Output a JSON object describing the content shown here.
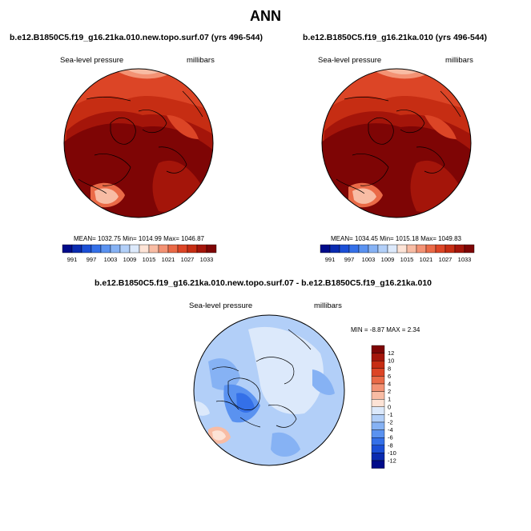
{
  "page": {
    "title": "ANN"
  },
  "top_panels": [
    {
      "case_title": "b.e12.B1850C5.f19_g16.21ka.010.new.topo.surf.07 (yrs 496-544)",
      "variable": "Sea-level pressure",
      "units": "millibars",
      "stats": "MEAN= 1032.75   Min= 1014.99   Max= 1046.87"
    },
    {
      "case_title": "b.e12.B1850C5.f19_g16.21ka.010 (yrs 496-544)",
      "variable": "Sea-level pressure",
      "units": "millibars",
      "stats": "MEAN= 1034.45   Min= 1015.18   Max= 1049.83"
    }
  ],
  "abs_colorbar": {
    "labels": [
      "991",
      "997",
      "1003",
      "1009",
      "1015",
      "1021",
      "1027",
      "1033"
    ],
    "colors": [
      "#000b8a",
      "#0a2bb0",
      "#1b4fd6",
      "#3470e8",
      "#5a92f0",
      "#86b2f4",
      "#b2cff8",
      "#dce9fb",
      "#fde3d6",
      "#f8bca4",
      "#f39274",
      "#ea6a47",
      "#dc4526",
      "#c62d13",
      "#a4150a",
      "#7e0505"
    ]
  },
  "diff_panel": {
    "title": "b.e12.B1850C5.f19_g16.21ka.010.new.topo.surf.07 - b.e12.B1850C5.f19_g16.21ka.010",
    "variable": "Sea-level pressure",
    "units": "millibars",
    "stats": "MIN =  -8.87 MAX =   2.34"
  },
  "diff_colorbar": {
    "labels": [
      "12",
      "10",
      "8",
      "6",
      "4",
      "2",
      "1",
      "0",
      "-1",
      "-2",
      "-4",
      "-6",
      "-8",
      "-10",
      "-12"
    ],
    "colors": [
      "#7e0505",
      "#a4150a",
      "#c62d13",
      "#dc4526",
      "#ea6a47",
      "#f39274",
      "#f8bca4",
      "#fde3d6",
      "#dce9fb",
      "#b2cff8",
      "#86b2f4",
      "#5a92f0",
      "#3470e8",
      "#1b4fd6",
      "#0a2bb0",
      "#000b8a"
    ]
  }
}
